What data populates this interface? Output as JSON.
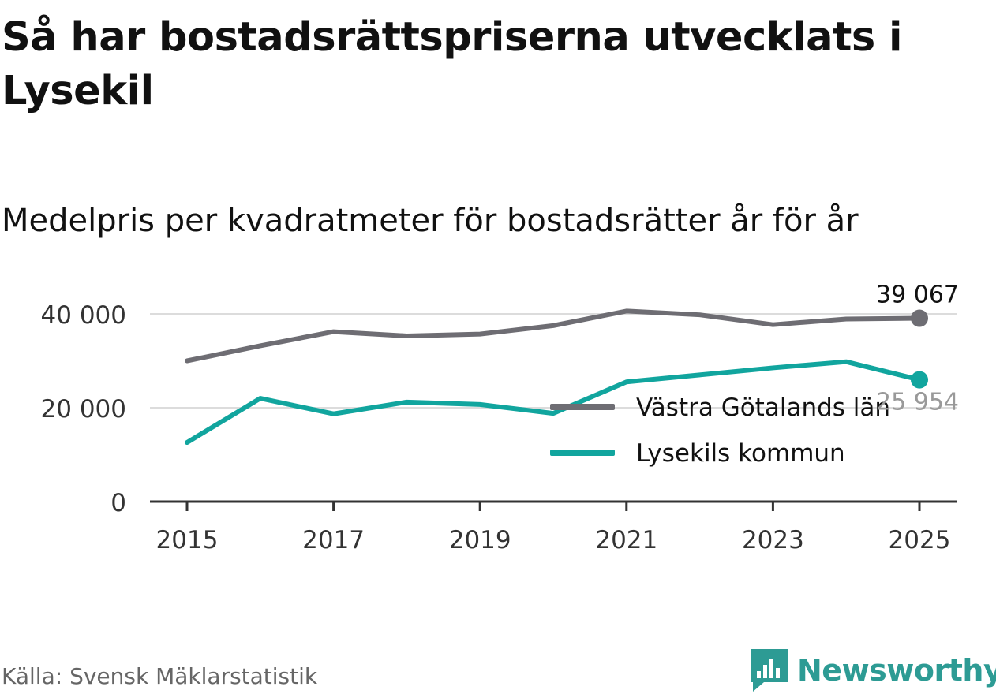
{
  "chart_data": {
    "type": "line",
    "title": "Så har bostadsrättspriserna utvecklats i Lysekil",
    "subtitle": "Medelpris per kvadratmeter för bostadsrätter år för år",
    "x": [
      2015,
      2016,
      2017,
      2018,
      2019,
      2020,
      2021,
      2022,
      2023,
      2024,
      2025
    ],
    "x_ticks": [
      "2015",
      "2017",
      "2019",
      "2021",
      "2023",
      "2025"
    ],
    "y_ticks": [
      "0",
      "20 000",
      "40 000"
    ],
    "ylim": [
      0,
      40000
    ],
    "grid": true,
    "legend_position": "lower-right",
    "series": [
      {
        "name": "Västra Götalands län",
        "color": "#6e6d73",
        "values": [
          30000,
          33200,
          36200,
          35300,
          35700,
          37500,
          40600,
          39800,
          37700,
          38900,
          39067
        ],
        "end_label": "39 067"
      },
      {
        "name": "Lysekils kommun",
        "color": "#11a59e",
        "values": [
          12600,
          22000,
          18700,
          21200,
          20700,
          18800,
          25500,
          27000,
          28500,
          29800,
          25954
        ],
        "end_label": "25 954"
      }
    ],
    "source": "Källa: Svensk Mäklarstatistik"
  },
  "brand": {
    "name": "Newsworthy",
    "color": "#2d9b94"
  }
}
